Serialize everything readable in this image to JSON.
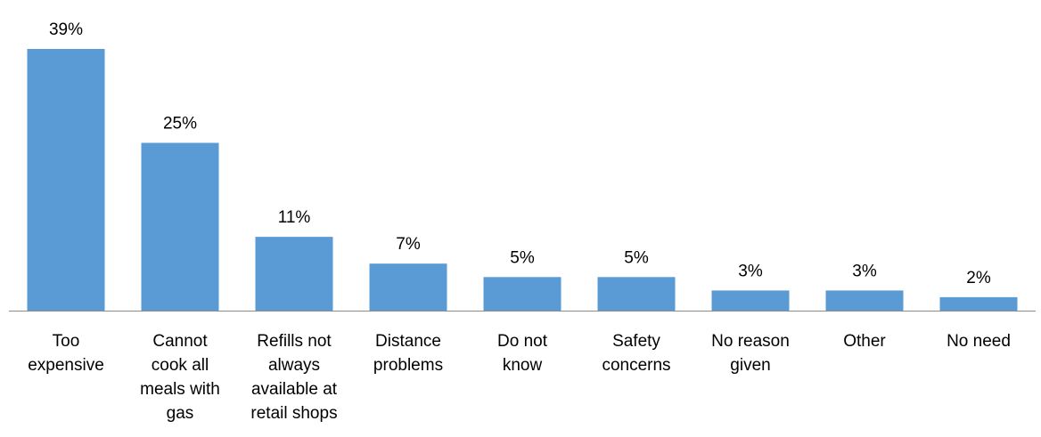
{
  "chart_data": {
    "type": "bar",
    "categories": [
      "Too expensive",
      "Cannot cook all meals with gas",
      "Refills not always available at retail shops",
      "Distance problems",
      "Do not know",
      "Safety concerns",
      "No reason given",
      "Other",
      "No need"
    ],
    "category_label_lines": [
      [
        "Too",
        "expensive"
      ],
      [
        "Cannot",
        "cook all",
        "meals with",
        "gas"
      ],
      [
        "Refills not",
        "always",
        "available at",
        "retail shops"
      ],
      [
        "Distance",
        "problems"
      ],
      [
        "Do not",
        "know"
      ],
      [
        "Safety",
        "concerns"
      ],
      [
        "No reason",
        "given"
      ],
      [
        "Other"
      ],
      [
        "No need"
      ]
    ],
    "values": [
      39,
      25,
      11,
      7,
      5,
      5,
      3,
      3,
      2
    ],
    "data_labels": [
      "39%",
      "25%",
      "11%",
      "7%",
      "5%",
      "5%",
      "3%",
      "3%",
      "2%"
    ],
    "value_unit": "%",
    "ylim": [
      0,
      40
    ],
    "grid": false,
    "legend": "none",
    "bar_color": "#5b9bd5",
    "axis_color": "#8c8c8c"
  }
}
